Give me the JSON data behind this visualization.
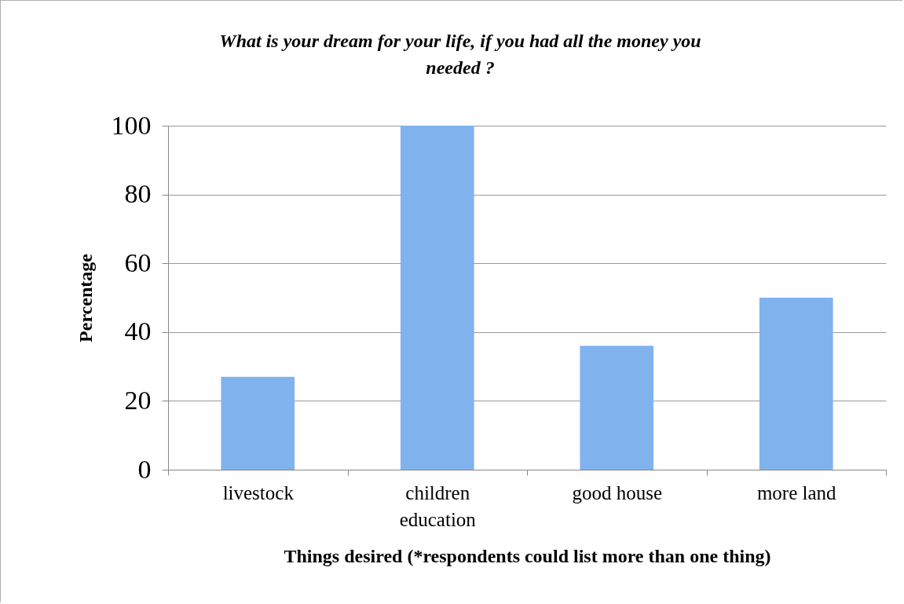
{
  "chart_data": {
    "type": "bar",
    "title": "What is your dream for your life, if you had all the money you needed ?",
    "xlabel": "Things desired (*respondents could list more than one thing)",
    "ylabel": "Percentage",
    "categories": [
      "livestock",
      "children education",
      "good house",
      "more land"
    ],
    "values": [
      27,
      100,
      36,
      50
    ],
    "color": "#80b3ee",
    "ylim": [
      0,
      100
    ],
    "yticks": [
      0,
      20,
      40,
      60,
      80,
      100
    ],
    "grid": "y"
  }
}
